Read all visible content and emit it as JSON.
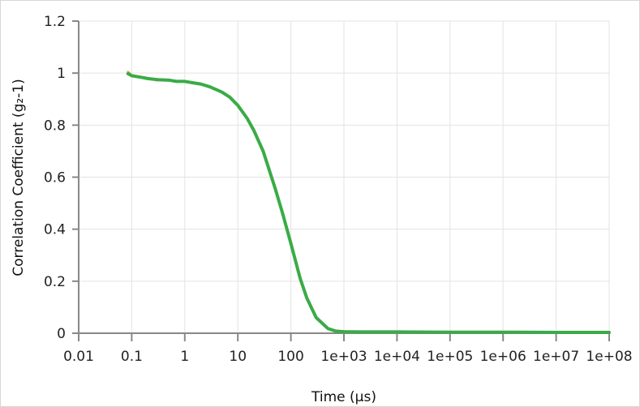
{
  "chart_data": {
    "type": "line",
    "xlabel": "Time (µs)",
    "ylabel": "Correlation Coefficient (g₂-1)",
    "x_scale": "log",
    "xlim": [
      0.01,
      100000000
    ],
    "ylim": [
      0,
      1.2
    ],
    "grid": true,
    "x_ticks": [
      {
        "value": 0.01,
        "label": "0.01"
      },
      {
        "value": 0.1,
        "label": "0.1"
      },
      {
        "value": 1,
        "label": "1"
      },
      {
        "value": 10,
        "label": "10"
      },
      {
        "value": 100,
        "label": "100"
      },
      {
        "value": 1000,
        "label": "1e+03"
      },
      {
        "value": 10000,
        "label": "1e+04"
      },
      {
        "value": 100000,
        "label": "1e+05"
      },
      {
        "value": 1000000,
        "label": "1e+06"
      },
      {
        "value": 10000000,
        "label": "1e+07"
      },
      {
        "value": 100000000,
        "label": "1e+08"
      }
    ],
    "y_ticks": [
      {
        "value": 0,
        "label": "0"
      },
      {
        "value": 0.2,
        "label": "0.2"
      },
      {
        "value": 0.4,
        "label": "0.4"
      },
      {
        "value": 0.6,
        "label": "0.6"
      },
      {
        "value": 0.8,
        "label": "0.8"
      },
      {
        "value": 1,
        "label": "1"
      },
      {
        "value": 1.2,
        "label": "1.2"
      }
    ],
    "series": [
      {
        "color": "#e8a33a",
        "x": [
          0.085,
          0.1,
          0.15,
          0.2,
          0.3,
          0.5,
          0.7,
          1,
          1.5,
          2,
          3,
          5,
          7,
          10,
          15,
          20,
          30,
          50,
          70,
          100,
          150,
          200,
          300,
          500,
          700,
          1000,
          2000,
          5000,
          10000,
          100000,
          1000000,
          10000000,
          100000000
        ],
        "y": [
          1.005,
          0.992,
          0.985,
          0.978,
          0.972,
          0.975,
          0.969,
          0.968,
          0.962,
          0.958,
          0.947,
          0.927,
          0.908,
          0.876,
          0.826,
          0.78,
          0.7,
          0.56,
          0.46,
          0.345,
          0.21,
          0.135,
          0.06,
          0.018,
          0.008,
          0.006,
          0.005,
          0.005,
          0.005,
          0.004,
          0.004,
          0.003,
          0.003
        ]
      },
      {
        "color": "#3a8fd6",
        "x": [
          0.085,
          0.1,
          0.15,
          0.2,
          0.3,
          0.5,
          0.7,
          1,
          1.5,
          2,
          3,
          5,
          7,
          10,
          15,
          20,
          30,
          50,
          70,
          100,
          150,
          200,
          300,
          500,
          700,
          1000,
          2000,
          5000,
          10000,
          100000,
          1000000,
          10000000,
          100000000
        ],
        "y": [
          0.995,
          0.99,
          0.983,
          0.98,
          0.977,
          0.972,
          0.97,
          0.969,
          0.963,
          0.958,
          0.947,
          0.927,
          0.908,
          0.876,
          0.826,
          0.78,
          0.7,
          0.56,
          0.46,
          0.345,
          0.21,
          0.135,
          0.06,
          0.018,
          0.008,
          0.006,
          0.005,
          0.005,
          0.005,
          0.004,
          0.004,
          0.003,
          0.003
        ]
      },
      {
        "color": "#3aab47",
        "x": [
          0.085,
          0.1,
          0.15,
          0.2,
          0.3,
          0.5,
          0.7,
          1,
          1.5,
          2,
          3,
          5,
          7,
          10,
          15,
          20,
          30,
          50,
          70,
          100,
          150,
          200,
          300,
          500,
          700,
          1000,
          2000,
          5000,
          10000,
          100000,
          1000000,
          10000000,
          100000000
        ],
        "y": [
          0.998,
          0.99,
          0.984,
          0.979,
          0.975,
          0.973,
          0.968,
          0.968,
          0.962,
          0.958,
          0.947,
          0.927,
          0.908,
          0.876,
          0.826,
          0.78,
          0.7,
          0.56,
          0.46,
          0.345,
          0.21,
          0.135,
          0.06,
          0.018,
          0.008,
          0.006,
          0.005,
          0.005,
          0.005,
          0.004,
          0.004,
          0.003,
          0.003
        ]
      }
    ]
  }
}
